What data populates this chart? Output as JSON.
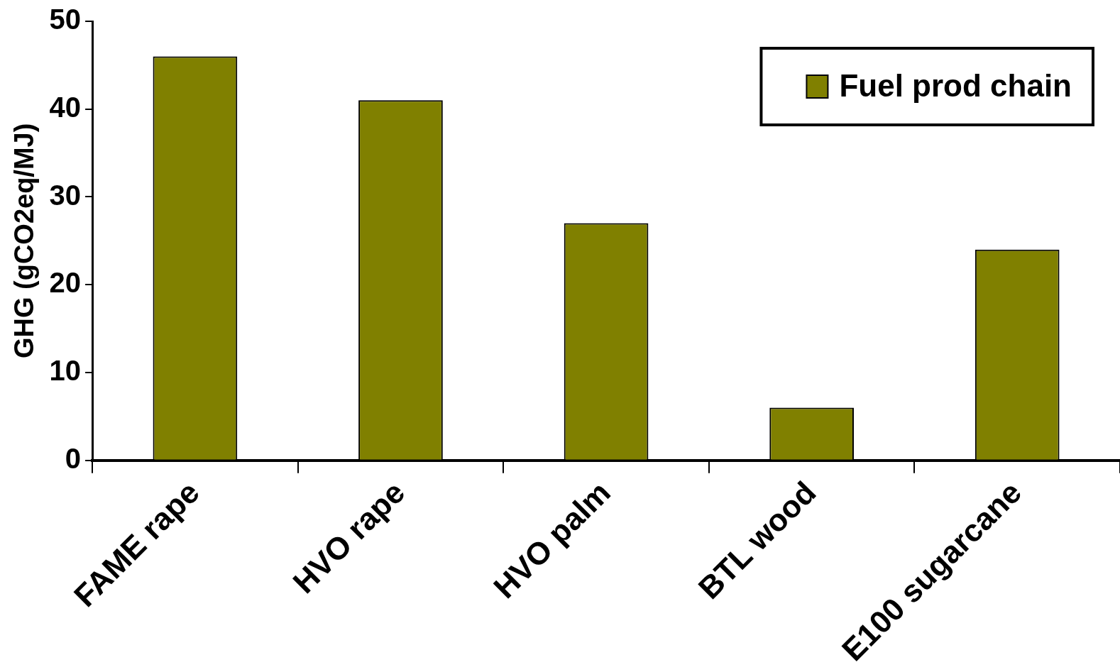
{
  "chart_data": {
    "type": "bar",
    "ylabel": "GHG (gCO2eq/MJ)",
    "categories": [
      "FAME rape",
      "HVO rape",
      "HVO palm",
      "BTL wood",
      "E100 sugarcane"
    ],
    "series": [
      {
        "name": "Fuel prod chain",
        "color": "#808000",
        "values": [
          46,
          41,
          27,
          6,
          24
        ]
      }
    ],
    "ylim": [
      0,
      50
    ],
    "yticks": [
      0,
      10,
      20,
      30,
      40,
      50
    ],
    "grid": false,
    "legend": "top right"
  }
}
